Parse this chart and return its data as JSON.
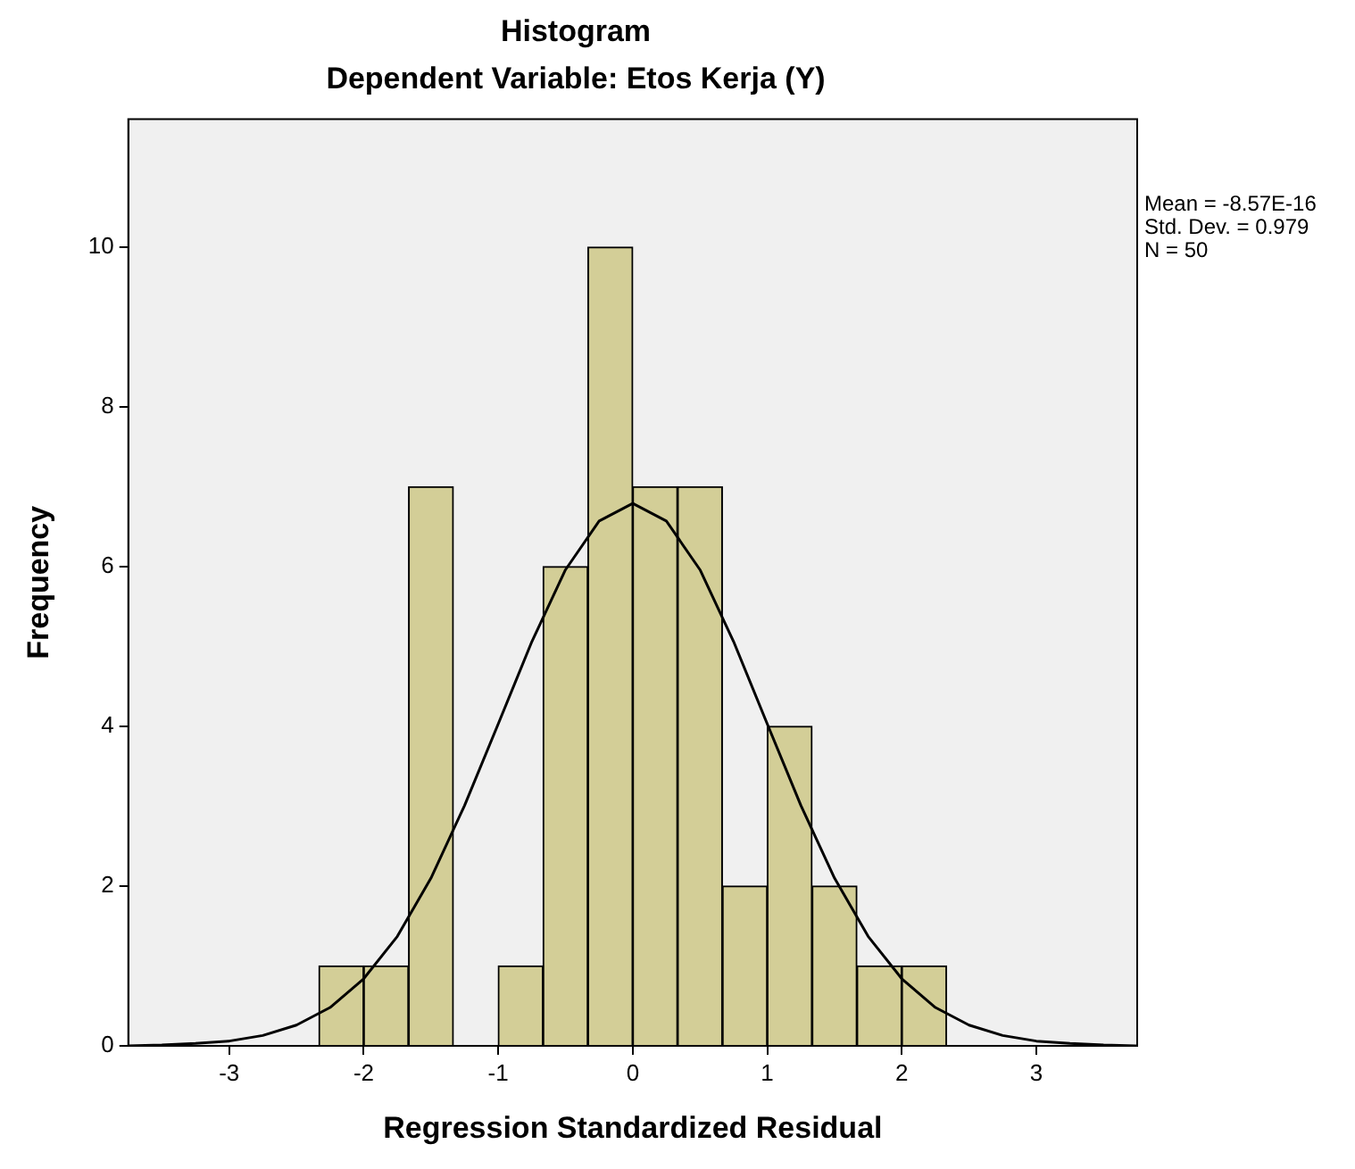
{
  "chart_data": {
    "type": "histogram",
    "title": "Histogram",
    "subtitle": "Dependent Variable: Etos Kerja (Y)",
    "xlabel": "Regression Standardized Residual",
    "ylabel": "Frequency",
    "bins": [
      -2.333,
      -2.0,
      -1.667,
      -1.333,
      -1.0,
      -0.667,
      -0.333,
      0,
      0.333,
      0.667,
      1.0,
      1.333,
      1.667,
      2.0,
      2.333
    ],
    "values": [
      1,
      1,
      7,
      0,
      1,
      6,
      10,
      7,
      7,
      2,
      4,
      2,
      1,
      1
    ],
    "color": "#d3ce97",
    "series": [
      {
        "type": "line",
        "color": "#000000",
        "x": [
          -3.75,
          -3.5,
          -3.25,
          -3,
          -2.75,
          -2.5,
          -2.25,
          -2,
          -1.75,
          -1.5,
          -1.25,
          -1,
          -0.75,
          -0.5,
          -0.25,
          0,
          0.25,
          0.5,
          0.75,
          1,
          1.25,
          1.5,
          1.75,
          2,
          2.25,
          2.5,
          2.75,
          3,
          3.25,
          3.5,
          3.75
        ],
        "values": [
          0,
          0.01,
          0.03,
          0.06,
          0.13,
          0.26,
          0.48,
          0.84,
          1.37,
          2.1,
          3.01,
          4.03,
          5.06,
          5.96,
          6.57,
          6.79,
          6.57,
          5.96,
          5.06,
          4.03,
          3.01,
          2.1,
          1.37,
          0.84,
          0.48,
          0.26,
          0.13,
          0.06,
          0.03,
          0.01,
          0
        ]
      }
    ],
    "xlim": [
      -3.75,
      3.75
    ],
    "xticks": [
      -3,
      -2,
      -1,
      0,
      1,
      2,
      3
    ],
    "ylim": [
      0,
      11.6
    ],
    "yticks": [
      0,
      2,
      4,
      6,
      8,
      10
    ],
    "grid": false,
    "legend": false,
    "annotations": [
      "Mean = -8.57E-16",
      "Std. Dev. = 0.979",
      "N = 50"
    ]
  }
}
